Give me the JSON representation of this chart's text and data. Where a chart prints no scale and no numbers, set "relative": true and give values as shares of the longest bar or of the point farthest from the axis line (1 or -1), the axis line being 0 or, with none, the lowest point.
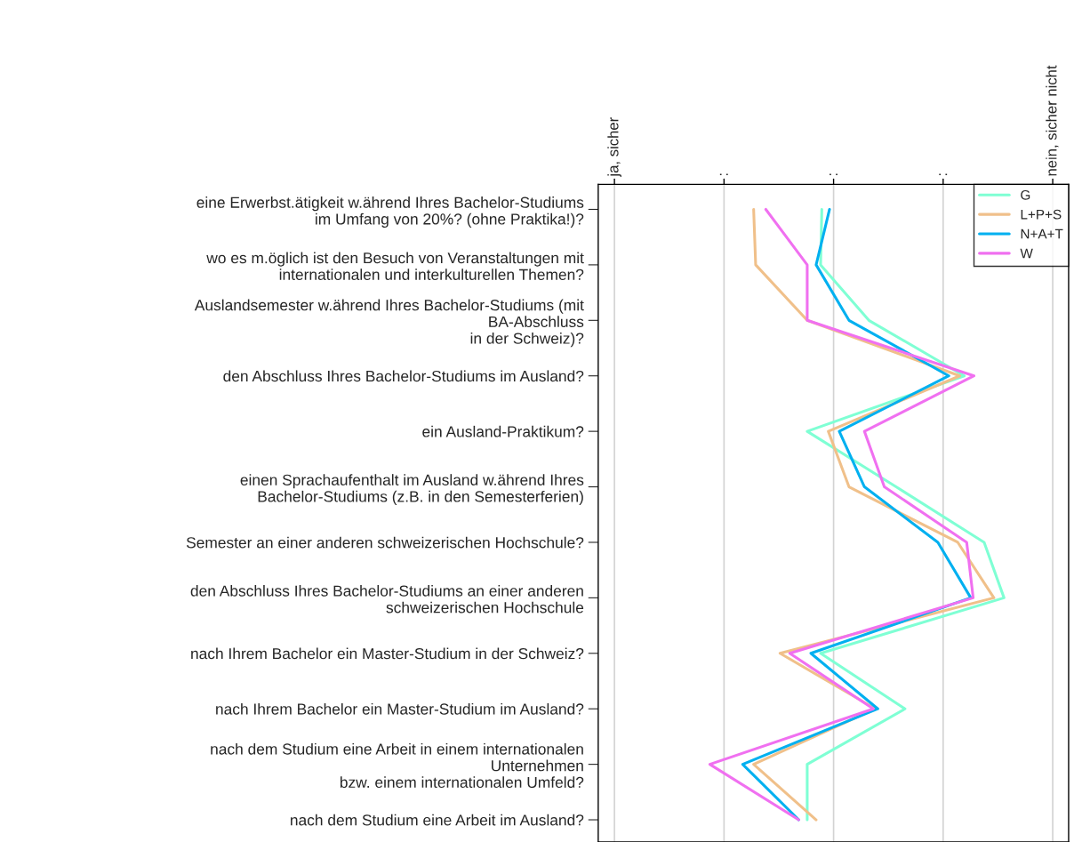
{
  "chart_data": {
    "type": "line",
    "orientation": "horizontal",
    "categories": [
      "eine Erwerbst.ätigkeit w.ährend Ihres Bachelor-Studiums\nim Umfang von 20%? (ohne Praktika!)?",
      "wo es m.öglich ist den Besuch von Veranstaltungen mit\ninternationalen und interkulturellen Themen?",
      "Auslandsemester w.ährend Ihres Bachelor-Studiums (mit\nBA-Abschluss\nin der Schweiz)?",
      "den Abschluss Ihres Bachelor-Studiums im Ausland?",
      "ein Ausland-Praktikum?",
      "einen Sprachaufenthalt im Ausland w.ährend Ihres\nBachelor-Studiums (z.B. in den Semesterferien)",
      "Semester an einer anderen schweizerischen Hochschule?",
      "den Abschluss Ihres Bachelor-Studiums an einer anderen\nschweizerischen Hochschule",
      "nach Ihrem Bachelor ein Master-Studium in der Schweiz?",
      "nach Ihrem Bachelor ein Master-Studium im Ausland?",
      "nach dem Studium eine Arbeit in einem internationalen\nUnternehmen\nbzw. einem internationalen Umfeld?",
      "nach dem Studium eine Arbeit im Ausland?"
    ],
    "series": [
      {
        "name": "G",
        "color": "#7fffd4",
        "values": [
          0.551,
          0.548,
          0.667,
          0.902,
          0.515,
          0.734,
          0.951,
          1.0,
          0.548,
          0.756,
          0.515,
          0.515
        ]
      },
      {
        "name": "L+P+S",
        "color": "#f0c08a",
        "values": [
          0.383,
          0.388,
          0.515,
          0.891,
          0.567,
          0.618,
          0.886,
          0.975,
          0.448,
          0.683,
          0.383,
          0.537
        ]
      },
      {
        "name": "N+A+T",
        "color": "#00b0f0",
        "values": [
          0.57,
          0.537,
          0.618,
          0.864,
          0.594,
          0.656,
          0.837,
          0.918,
          0.524,
          0.689,
          0.356,
          0.494
        ]
      },
      {
        "name": "W",
        "color": "#f070f0",
        "values": [
          0.413,
          0.515,
          0.515,
          0.926,
          0.656,
          0.705,
          0.908,
          0.924,
          0.472,
          0.678,
          0.275,
          0.494
        ]
      }
    ],
    "relative": true,
    "ref_lines": [
      {
        "axis": "x",
        "value": 0.04,
        "label": "ja, sicher",
        "color": "#d3d3d3"
      },
      {
        "axis": "x",
        "value": 0.31,
        "label": ":",
        "color": "#d3d3d3"
      },
      {
        "axis": "x",
        "value": 0.58,
        "label": ":",
        "color": "#d3d3d3"
      },
      {
        "axis": "x",
        "value": 0.85,
        "label": ":",
        "color": "#d3d3d3"
      },
      {
        "axis": "x",
        "value": 1.12,
        "label": "nein, sicher nicht",
        "color": "#d3d3d3"
      }
    ],
    "legend": "top right",
    "line_style": "solid"
  }
}
